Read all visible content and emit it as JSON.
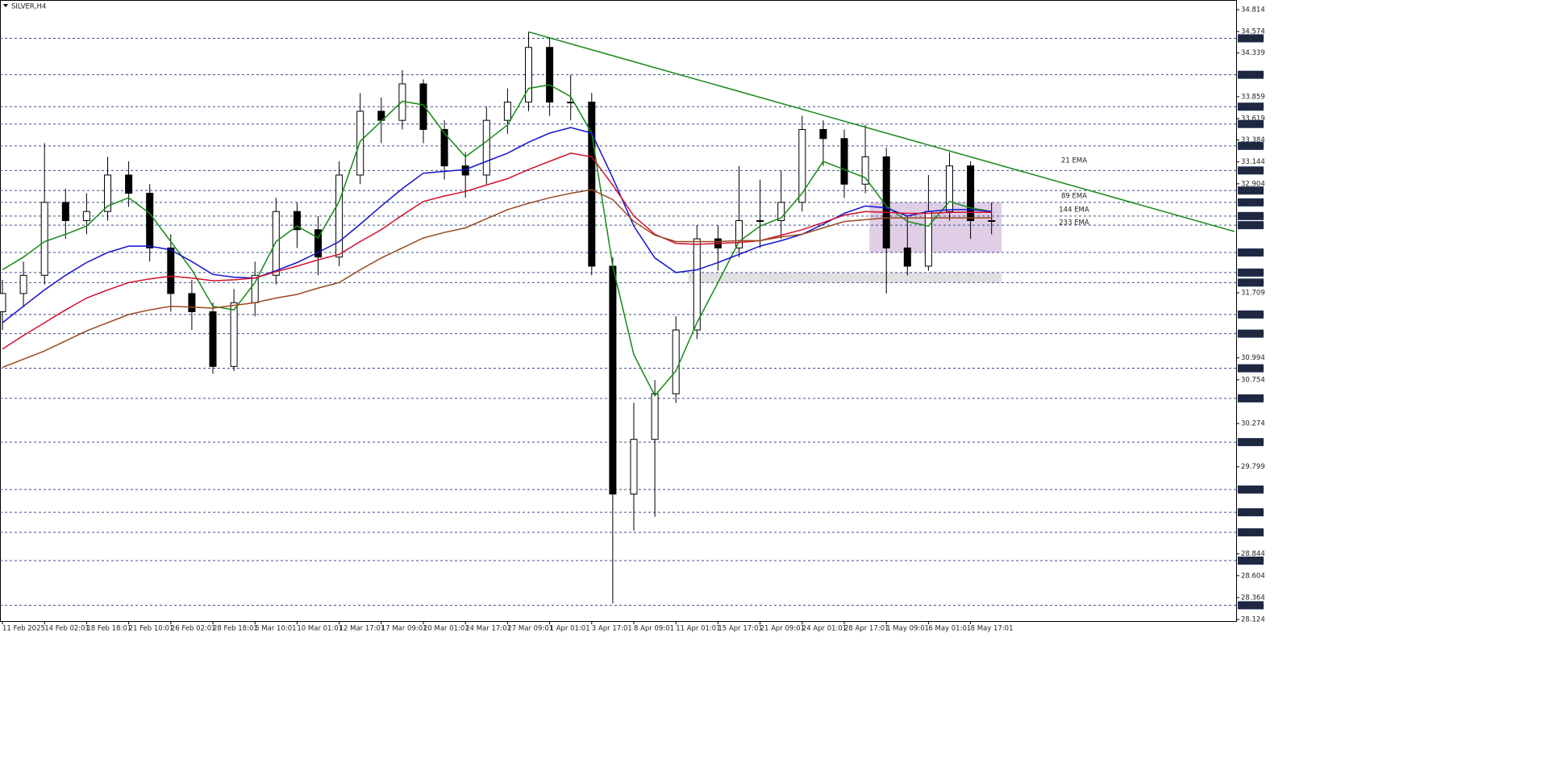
{
  "chart_data": {
    "type": "candlestick",
    "title": "SILVER,H4",
    "categories": [
      "11 Feb 2025",
      null,
      "14 Feb 02:01",
      null,
      "18 Feb 18:01",
      null,
      "21 Feb 10:01",
      null,
      "26 Feb 02:01",
      null,
      "28 Feb 18:01",
      null,
      "5 Mar 10:01",
      null,
      "10 Mar 01:01",
      null,
      "12 Mar 17:01",
      null,
      "17 Mar 09:01",
      null,
      "20 Mar 01:01",
      null,
      "24 Mar 17:01",
      null,
      "27 Mar 09:01",
      null,
      "1 Apr 01:01",
      null,
      "3 Apr 17:01",
      null,
      "8 Apr 09:01",
      null,
      "11 Apr 01:01",
      null,
      "15 Apr 17:01",
      null,
      "21 Apr 09:01",
      null,
      "24 Apr 01:01",
      null,
      "28 Apr 17:01",
      null,
      "1 May 09:01",
      null,
      "6 May 01:01",
      null,
      "8 May 17:01",
      null
    ],
    "ohlc": [
      [
        31.5,
        31.85,
        31.3,
        31.7
      ],
      [
        31.7,
        32.05,
        31.55,
        31.9
      ],
      [
        31.9,
        33.35,
        31.8,
        32.7
      ],
      [
        32.7,
        32.85,
        32.3,
        32.5
      ],
      [
        32.5,
        32.8,
        32.35,
        32.6
      ],
      [
        32.6,
        33.2,
        32.5,
        33.0
      ],
      [
        33.0,
        33.15,
        32.65,
        32.8
      ],
      [
        32.8,
        32.9,
        32.05,
        32.2
      ],
      [
        32.2,
        32.35,
        31.5,
        31.7
      ],
      [
        31.7,
        31.85,
        31.3,
        31.5
      ],
      [
        31.5,
        31.6,
        30.82,
        30.9
      ],
      [
        30.9,
        31.75,
        30.85,
        31.6
      ],
      [
        31.6,
        32.05,
        31.45,
        31.9
      ],
      [
        31.9,
        32.75,
        31.8,
        32.6
      ],
      [
        32.6,
        32.7,
        32.2,
        32.4
      ],
      [
        32.4,
        32.55,
        31.9,
        32.1
      ],
      [
        32.1,
        33.15,
        32.0,
        33.0
      ],
      [
        33.0,
        33.9,
        32.9,
        33.7
      ],
      [
        33.7,
        33.85,
        33.35,
        33.6
      ],
      [
        33.6,
        34.15,
        33.5,
        34.0
      ],
      [
        34.0,
        34.05,
        33.35,
        33.5
      ],
      [
        33.5,
        33.6,
        32.95,
        33.1
      ],
      [
        33.1,
        33.25,
        32.75,
        33.0
      ],
      [
        33.0,
        33.75,
        32.9,
        33.6
      ],
      [
        33.6,
        33.95,
        33.45,
        33.8
      ],
      [
        33.8,
        34.57,
        33.7,
        34.4
      ],
      [
        34.4,
        34.5,
        33.65,
        33.8
      ],
      [
        33.8,
        34.1,
        33.6,
        33.8
      ],
      [
        33.8,
        33.9,
        31.9,
        32.0
      ],
      [
        32.0,
        32.1,
        28.3,
        29.5
      ],
      [
        29.5,
        30.5,
        29.1,
        30.1
      ],
      [
        30.1,
        30.75,
        29.25,
        30.6
      ],
      [
        30.6,
        31.45,
        30.5,
        31.3
      ],
      [
        31.3,
        32.45,
        31.2,
        32.3
      ],
      [
        32.3,
        32.45,
        31.95,
        32.2
      ],
      [
        32.2,
        33.1,
        32.1,
        32.5
      ],
      [
        32.5,
        32.95,
        32.2,
        32.5
      ],
      [
        32.5,
        33.05,
        32.3,
        32.7
      ],
      [
        32.7,
        33.65,
        32.6,
        33.5
      ],
      [
        33.5,
        33.6,
        33.1,
        33.4
      ],
      [
        33.4,
        33.5,
        32.75,
        32.9
      ],
      [
        32.9,
        33.55,
        32.8,
        33.2
      ],
      [
        33.2,
        33.3,
        31.7,
        32.2
      ],
      [
        32.2,
        32.55,
        31.9,
        32.0
      ],
      [
        32.0,
        33.0,
        31.95,
        32.6
      ],
      [
        32.6,
        33.25,
        32.5,
        33.1
      ],
      [
        33.1,
        33.15,
        32.3,
        32.5
      ],
      [
        32.5,
        32.7,
        32.35,
        32.5
      ]
    ],
    "series": [
      {
        "name": "21 EMA",
        "color": "#168a16",
        "values": [
          31.96,
          32.1,
          32.27,
          32.35,
          32.44,
          32.66,
          32.75,
          32.58,
          32.27,
          31.96,
          31.56,
          31.52,
          31.82,
          32.27,
          32.44,
          32.31,
          32.71,
          33.37,
          33.59,
          33.81,
          33.77,
          33.46,
          33.2,
          33.37,
          33.55,
          33.95,
          33.99,
          33.86,
          33.46,
          32.0,
          31.03,
          30.58,
          30.85,
          31.38,
          31.82,
          32.27,
          32.44,
          32.53,
          32.8,
          33.15,
          33.06,
          32.97,
          32.66,
          32.49,
          32.44,
          32.71,
          32.64,
          32.6
        ]
      },
      {
        "name": "89 EMA",
        "color": "#1414cc",
        "values": [
          31.38,
          31.56,
          31.74,
          31.9,
          32.04,
          32.15,
          32.22,
          32.22,
          32.18,
          32.05,
          31.91,
          31.88,
          31.87,
          31.95,
          32.04,
          32.15,
          32.27,
          32.46,
          32.66,
          32.85,
          33.02,
          33.04,
          33.06,
          33.15,
          33.24,
          33.36,
          33.46,
          33.52,
          33.46,
          32.97,
          32.44,
          32.09,
          31.93,
          31.96,
          32.04,
          32.13,
          32.22,
          32.28,
          32.35,
          32.46,
          32.58,
          32.66,
          32.64,
          32.55,
          32.6,
          32.62,
          32.62,
          32.6
        ]
      },
      {
        "name": "144 EMA",
        "color": "#d2102c",
        "values": [
          31.09,
          31.24,
          31.38,
          31.52,
          31.65,
          31.74,
          31.82,
          31.86,
          31.89,
          31.87,
          31.84,
          31.85,
          31.87,
          31.94,
          32.0,
          32.07,
          32.13,
          32.27,
          32.4,
          32.56,
          32.71,
          32.77,
          32.82,
          32.89,
          32.96,
          33.06,
          33.15,
          33.24,
          33.2,
          32.89,
          32.55,
          32.35,
          32.25,
          32.24,
          32.25,
          32.26,
          32.28,
          32.34,
          32.4,
          32.48,
          32.56,
          32.6,
          32.59,
          32.58,
          32.58,
          32.59,
          32.59,
          32.59
        ]
      },
      {
        "name": "233 EMA",
        "color": "#9a4a20",
        "values": [
          30.89,
          30.98,
          31.07,
          31.18,
          31.29,
          31.38,
          31.47,
          31.52,
          31.56,
          31.55,
          31.54,
          31.57,
          31.6,
          31.65,
          31.69,
          31.76,
          31.82,
          31.96,
          32.09,
          32.2,
          32.31,
          32.37,
          32.42,
          32.52,
          32.62,
          32.69,
          32.75,
          32.8,
          32.84,
          32.73,
          32.49,
          32.34,
          32.27,
          32.27,
          32.27,
          32.28,
          32.28,
          32.32,
          32.35,
          32.42,
          32.49,
          32.51,
          32.53,
          32.53,
          32.53,
          32.53,
          32.53,
          32.53
        ]
      }
    ],
    "trendline": {
      "color": "#168a16",
      "values": [
        34.57,
        32.38
      ]
    },
    "zones": [
      {
        "color": "#d9c6e2",
        "values": [
          32.7,
          32.15
        ]
      },
      {
        "color": "#dcdcdc",
        "values": [
          31.93,
          31.82
        ]
      }
    ],
    "ylim": [
      28.124,
      34.814
    ],
    "yticks": [
      34.814,
      34.574,
      34.339,
      33.859,
      33.619,
      33.384,
      33.144,
      32.904,
      31.709,
      30.994,
      30.754,
      30.274,
      29.799,
      28.844,
      28.604,
      28.364,
      28.124
    ],
    "levels": [
      {
        "value": 34.5,
        "label": "34.500"
      },
      {
        "value": 34.1,
        "label": "34.100"
      },
      {
        "value": 33.75,
        "label": "33.750"
      },
      {
        "value": 33.56,
        "label": "33.560"
      },
      {
        "value": 33.32,
        "label": "33.320"
      },
      {
        "value": 33.05,
        "label": "33.050"
      },
      {
        "value": 32.83,
        "label": "32.830"
      },
      {
        "value": 32.7,
        "label": "32.700"
      },
      {
        "value": 32.55,
        "label": "32.550"
      },
      {
        "value": 32.45,
        "label": "32.450"
      },
      {
        "value": 32.15,
        "label": "32.150"
      },
      {
        "value": 31.93,
        "label": "31.930"
      },
      {
        "value": 31.82,
        "label": "31.820"
      },
      {
        "value": 31.47,
        "label": "31.470"
      },
      {
        "value": 31.26,
        "label": "31.260"
      },
      {
        "value": 30.88,
        "label": "30.880"
      },
      {
        "value": 30.55,
        "label": "30.550"
      },
      {
        "value": 30.07,
        "label": "30.070"
      },
      {
        "value": 29.55,
        "label": "29.550"
      },
      {
        "value": 29.3,
        "label": "29.300"
      },
      {
        "value": 29.08,
        "label": "29.080"
      },
      {
        "value": 28.77,
        "label": "28.770"
      },
      {
        "value": 28.28,
        "label": "28.280"
      }
    ],
    "level_color": "#3b4f8c",
    "up_color": "#ffffff",
    "down_color": "#000000"
  }
}
